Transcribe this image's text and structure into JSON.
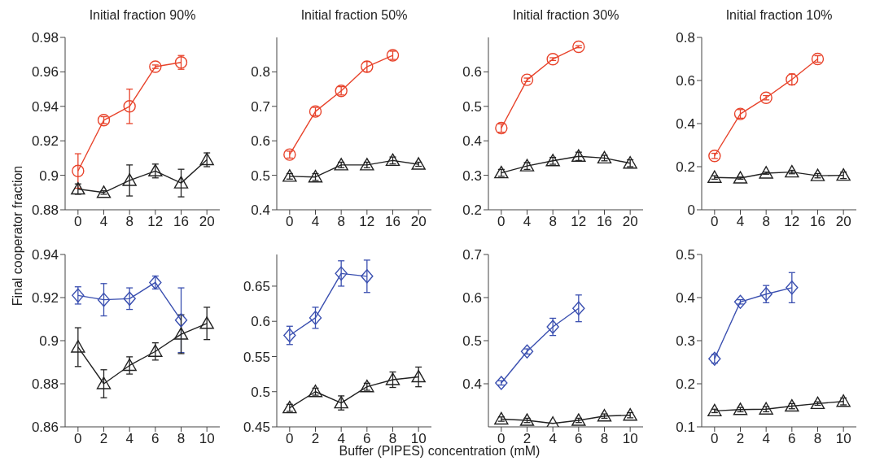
{
  "chart_data": [
    {
      "type": "line",
      "title": "Initial fraction 90%",
      "x": [
        0,
        4,
        8,
        12,
        16,
        20
      ],
      "xlim": [
        -2,
        22
      ],
      "xticks": [
        0,
        4,
        8,
        12,
        16,
        20
      ],
      "ylim": [
        0.88,
        0.98
      ],
      "yticks": [
        0.88,
        0.9,
        0.92,
        0.94,
        0.96,
        0.98
      ],
      "series": [
        {
          "color": "#e8432b",
          "marker": "circle",
          "values": [
            0.9025,
            0.932,
            0.94,
            0.963,
            0.9655,
            null
          ],
          "errors": [
            0.01,
            0.002,
            0.01,
            0.001,
            0.004,
            null
          ]
        },
        {
          "color": "#222222",
          "marker": "triangle",
          "values": [
            0.892,
            0.89,
            0.897,
            0.9025,
            0.8955,
            0.909
          ],
          "errors": [
            0.003,
            0.001,
            0.009,
            0.004,
            0.008,
            0.004
          ]
        }
      ]
    },
    {
      "type": "line",
      "title": "Initial fraction 50%",
      "x": [
        0,
        4,
        8,
        12,
        16,
        20
      ],
      "xlim": [
        -2,
        22
      ],
      "xticks": [
        0,
        4,
        8,
        12,
        16,
        20
      ],
      "ylim": [
        0.4,
        0.9
      ],
      "yticks": [
        0.4,
        0.5,
        0.6,
        0.7,
        0.8
      ],
      "series": [
        {
          "color": "#e8432b",
          "marker": "circle",
          "values": [
            0.56,
            0.685,
            0.745,
            0.815,
            0.848,
            null
          ],
          "errors": [
            0.01,
            0.012,
            0.012,
            0.015,
            0.012,
            null
          ]
        },
        {
          "color": "#222222",
          "marker": "triangle",
          "values": [
            0.497,
            0.495,
            0.53,
            0.53,
            0.543,
            0.532
          ],
          "errors": [
            0.008,
            0.01,
            0.008,
            0.008,
            0.01,
            0.006
          ]
        }
      ]
    },
    {
      "type": "line",
      "title": "Initial fraction 30%",
      "x": [
        0,
        4,
        8,
        12,
        16,
        20
      ],
      "xlim": [
        -2,
        22
      ],
      "xticks": [
        0,
        4,
        8,
        12,
        16,
        20
      ],
      "ylim": [
        0.2,
        0.7
      ],
      "yticks": [
        0.2,
        0.3,
        0.4,
        0.5,
        0.6
      ],
      "series": [
        {
          "color": "#e8432b",
          "marker": "circle",
          "values": [
            0.437,
            0.577,
            0.637,
            0.673,
            null,
            null
          ],
          "errors": [
            0.012,
            0.005,
            0.004,
            0.003,
            null,
            null
          ]
        },
        {
          "color": "#222222",
          "marker": "triangle",
          "values": [
            0.307,
            0.327,
            0.342,
            0.355,
            0.35,
            0.335
          ],
          "errors": [
            0.01,
            0.01,
            0.01,
            0.012,
            0.008,
            0.01
          ]
        }
      ]
    },
    {
      "type": "line",
      "title": "Initial fraction 10%",
      "x": [
        0,
        4,
        8,
        12,
        16,
        20
      ],
      "xlim": [
        -2,
        22
      ],
      "xticks": [
        0,
        4,
        8,
        12,
        16,
        20
      ],
      "ylim": [
        0,
        0.8
      ],
      "yticks": [
        0,
        0.2,
        0.4,
        0.6,
        0.8
      ],
      "series": [
        {
          "color": "#e8432b",
          "marker": "circle",
          "values": [
            0.25,
            0.445,
            0.52,
            0.605,
            0.7,
            null
          ],
          "errors": [
            0.012,
            0.02,
            0.01,
            0.025,
            0.015,
            null
          ]
        },
        {
          "color": "#222222",
          "marker": "triangle",
          "values": [
            0.15,
            0.147,
            0.17,
            0.175,
            0.158,
            0.16
          ],
          "errors": [
            0.008,
            0.005,
            0.005,
            0.008,
            0.01,
            0.015
          ]
        }
      ]
    },
    {
      "type": "line",
      "ylabel": "Final cooperator fraction",
      "x": [
        0,
        2,
        4,
        6,
        8,
        10
      ],
      "xlim": [
        -1,
        11
      ],
      "xticks": [
        0,
        2,
        4,
        6,
        8,
        10
      ],
      "ylim": [
        0.86,
        0.94
      ],
      "yticks": [
        0.86,
        0.88,
        0.9,
        0.92,
        0.94
      ],
      "series": [
        {
          "color": "#3a4fb0",
          "marker": "diamond",
          "values": [
            0.921,
            0.919,
            0.9195,
            0.927,
            0.9095,
            null
          ],
          "errors": [
            0.004,
            0.0075,
            0.005,
            0.003,
            0.015,
            null
          ]
        },
        {
          "color": "#222222",
          "marker": "triangle",
          "values": [
            0.897,
            0.88,
            0.8885,
            0.895,
            0.903,
            0.908
          ],
          "errors": [
            0.009,
            0.0065,
            0.004,
            0.004,
            0.009,
            0.0075
          ]
        }
      ]
    },
    {
      "type": "line",
      "xlabel": "Buffer (PIPES) concentration (mM)",
      "x": [
        0,
        2,
        4,
        6,
        8,
        10
      ],
      "xlim": [
        -1,
        11
      ],
      "xticks": [
        0,
        2,
        4,
        6,
        8,
        10
      ],
      "ylim": [
        0.45,
        0.695
      ],
      "yticks": [
        0.45,
        0.5,
        0.55,
        0.6,
        0.65
      ],
      "series": [
        {
          "color": "#3a4fb0",
          "marker": "diamond",
          "values": [
            0.58,
            0.605,
            0.668,
            0.664,
            null,
            null
          ],
          "errors": [
            0.013,
            0.015,
            0.018,
            0.023,
            null,
            null
          ]
        },
        {
          "color": "#222222",
          "marker": "triangle",
          "values": [
            0.477,
            0.5,
            0.484,
            0.507,
            0.517,
            0.521
          ],
          "errors": [
            0.005,
            0.005,
            0.01,
            0.005,
            0.011,
            0.014
          ]
        }
      ]
    },
    {
      "type": "line",
      "x": [
        0,
        2,
        4,
        6,
        8,
        10
      ],
      "xlim": [
        -1,
        11
      ],
      "xticks": [
        0,
        2,
        4,
        6,
        8,
        10
      ],
      "ylim": [
        0.3,
        0.7
      ],
      "yticks": [
        0.4,
        0.5,
        0.6,
        0.7
      ],
      "series": [
        {
          "color": "#3a4fb0",
          "marker": "diamond",
          "values": [
            0.402,
            0.475,
            0.532,
            0.575,
            null,
            null
          ],
          "errors": [
            0.005,
            0.006,
            0.02,
            0.031,
            null,
            null
          ]
        },
        {
          "color": "#222222",
          "marker": "triangle",
          "values": [
            0.318,
            0.315,
            0.308,
            0.315,
            0.325,
            0.327
          ],
          "errors": [
            0.005,
            0.005,
            null,
            0.005,
            0.005,
            0.006
          ]
        }
      ]
    },
    {
      "type": "line",
      "x": [
        0,
        2,
        4,
        6,
        8,
        10
      ],
      "xlim": [
        -1,
        11
      ],
      "xticks": [
        0,
        2,
        4,
        6,
        8,
        10
      ],
      "ylim": [
        0.1,
        0.5
      ],
      "yticks": [
        0.1,
        0.2,
        0.3,
        0.4,
        0.5
      ],
      "series": [
        {
          "color": "#3a4fb0",
          "marker": "diamond",
          "values": [
            0.258,
            0.39,
            0.408,
            0.423,
            null,
            null
          ],
          "errors": [
            0.01,
            0.005,
            0.02,
            0.035,
            null,
            null
          ]
        },
        {
          "color": "#222222",
          "marker": "triangle",
          "values": [
            0.137,
            0.14,
            0.141,
            0.148,
            0.154,
            0.159
          ],
          "errors": [
            0.004,
            0.005,
            0.006,
            0.006,
            0.004,
            0.008
          ]
        }
      ]
    }
  ]
}
